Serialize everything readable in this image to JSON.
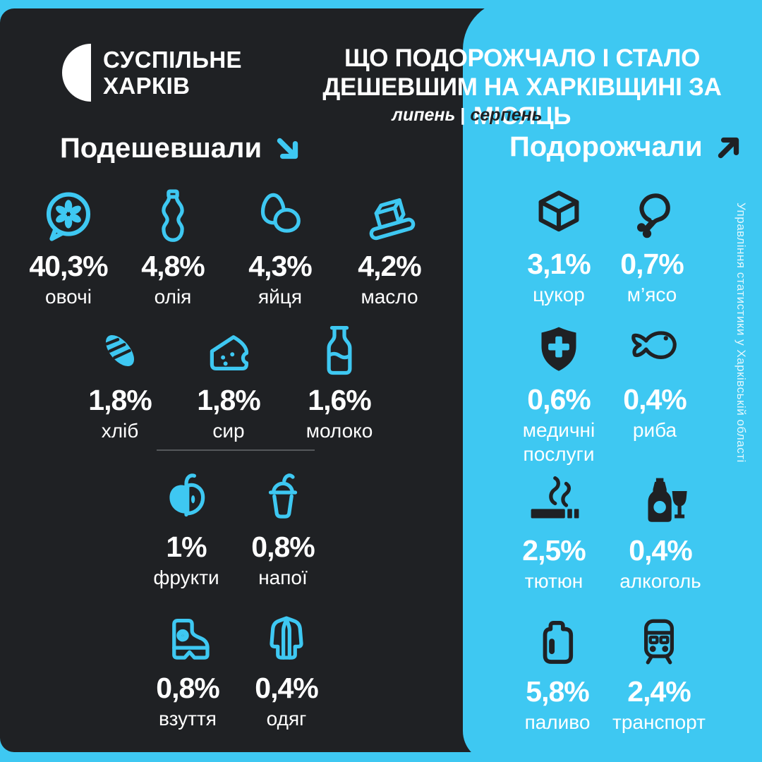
{
  "colors": {
    "cyan": "#3ec8f2",
    "dark": "#1f2124",
    "divider": "#54575b",
    "text": "#ffffff"
  },
  "logo": {
    "line1": "СУСПІЛЬНЕ",
    "line2": "ХАРКІВ",
    "mark": "suspilne-half-circle"
  },
  "header": {
    "title_line1": "ЩО ПОДОРОЖЧАЛО І СТАЛО",
    "title_line2": "ДЕШЕВШИМ НА ХАРКІВЩИНІ ЗА МІСЯЦЬ",
    "period": {
      "left": "липень",
      "separator": "|",
      "right": "серпень"
    }
  },
  "sections": {
    "cheaper": {
      "title": "Подешевшали",
      "arrow": "↘"
    },
    "expensive": {
      "title": "Подорожчали",
      "arrow": "↗"
    }
  },
  "cheaper": {
    "rows": [
      [
        {
          "value": "40,3%",
          "label": "овочі",
          "icon": "vegetables"
        },
        {
          "value": "4,8%",
          "label": "олія",
          "icon": "oil"
        },
        {
          "value": "4,3%",
          "label": "яйця",
          "icon": "eggs"
        },
        {
          "value": "4,2%",
          "label": "масло",
          "icon": "butter"
        }
      ],
      [
        {
          "value": "1,8%",
          "label": "хліб",
          "icon": "bread"
        },
        {
          "value": "1,8%",
          "label": "сир",
          "icon": "cheese"
        },
        {
          "value": "1,6%",
          "label": "молоко",
          "icon": "milk"
        }
      ],
      [
        {
          "value": "1%",
          "label": "фрукти",
          "icon": "fruit"
        },
        {
          "value": "0,8%",
          "label": "напої",
          "icon": "drinks"
        }
      ],
      [
        {
          "value": "0,8%",
          "label": "взуття",
          "icon": "shoes"
        },
        {
          "value": "0,4%",
          "label": "одяг",
          "icon": "clothing"
        }
      ]
    ]
  },
  "expensive": {
    "rows": [
      [
        {
          "value": "3,1%",
          "label": "цукор",
          "icon": "sugar"
        },
        {
          "value": "0,7%",
          "label": "м’ясо",
          "icon": "meat"
        }
      ],
      [
        {
          "value": "0,6%",
          "label": "медичні послуги",
          "icon": "medical"
        },
        {
          "value": "0,4%",
          "label": "риба",
          "icon": "fish"
        }
      ],
      [
        {
          "value": "2,5%",
          "label": "тютюн",
          "icon": "tobacco"
        },
        {
          "value": "0,4%",
          "label": "алкоголь",
          "icon": "alcohol"
        }
      ],
      [
        {
          "value": "5,8%",
          "label": "паливо",
          "icon": "fuel"
        },
        {
          "value": "2,4%",
          "label": "транспорт",
          "icon": "transport"
        }
      ]
    ]
  },
  "source_note": "Управління статистики у Харківській області",
  "chart_data": {
    "type": "table",
    "title": "ЩО ПОДОРОЖЧАЛО І СТАЛО ДЕШЕВШИМ НА ХАРКІВЩИНІ ЗА МІСЯЦЬ",
    "subtitle": "липень | серпень",
    "series": [
      {
        "name": "Подешевшали",
        "direction": "down",
        "unit": "%",
        "categories": [
          "овочі",
          "олія",
          "яйця",
          "масло",
          "хліб",
          "сир",
          "молоко",
          "фрукти",
          "напої",
          "взуття",
          "одяг"
        ],
        "values": [
          40.3,
          4.8,
          4.3,
          4.2,
          1.8,
          1.8,
          1.6,
          1.0,
          0.8,
          0.8,
          0.4
        ]
      },
      {
        "name": "Подорожчали",
        "direction": "up",
        "unit": "%",
        "categories": [
          "цукор",
          "м’ясо",
          "медичні послуги",
          "риба",
          "тютюн",
          "алкоголь",
          "паливо",
          "транспорт"
        ],
        "values": [
          3.1,
          0.7,
          0.6,
          0.4,
          2.5,
          0.4,
          5.8,
          2.4
        ]
      }
    ],
    "source": "Управління статистики у Харківській області"
  }
}
